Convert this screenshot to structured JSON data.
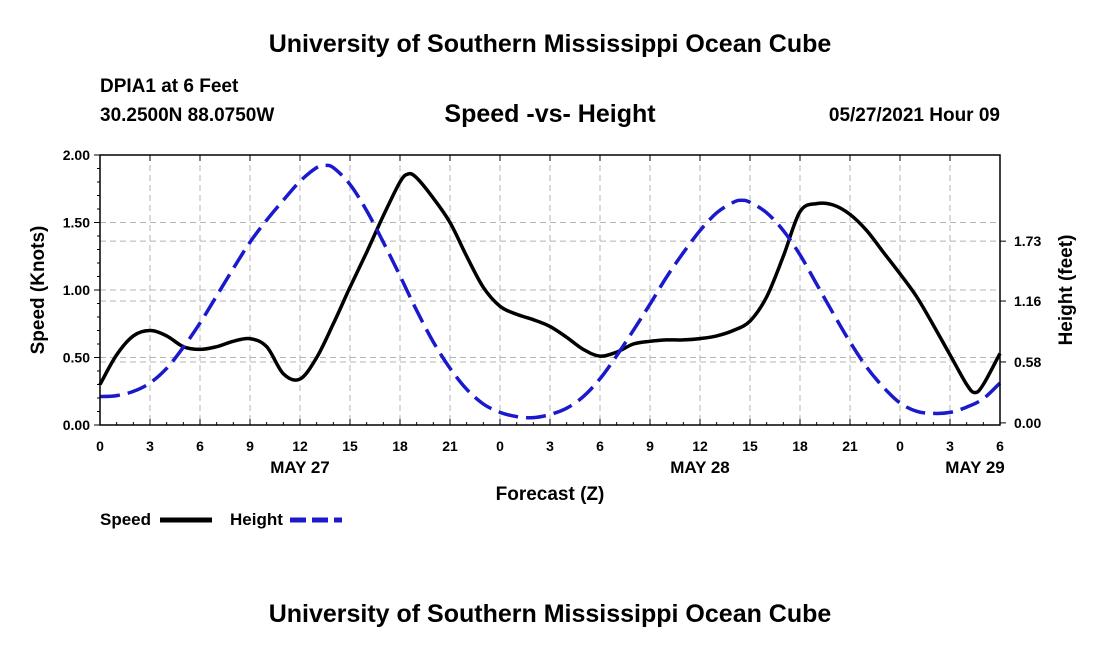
{
  "header": {
    "title": "University of Southern Mississippi Ocean Cube",
    "station": "DPIA1 at 6 Feet",
    "coords": "30.2500N  88.0750W",
    "forecast_time": "05/27/2021 Hour 09"
  },
  "footer": {
    "title": "University of Southern Mississippi Ocean Cube"
  },
  "colors": {
    "speed": "#000000",
    "height": "#1a1acc",
    "grid": "#b4b4b4"
  },
  "chart_data": {
    "type": "line",
    "title": "Speed -vs- Height",
    "xlabel": "Forecast (Z)",
    "ylabel": "Speed (Knots)",
    "ylabel_right": "Height (feet)",
    "x_range": [
      0,
      54
    ],
    "x_ticks": [
      0,
      3,
      6,
      9,
      12,
      15,
      18,
      21,
      24,
      27,
      30,
      33,
      36,
      39,
      42,
      45,
      48,
      51,
      54
    ],
    "x_tick_labels": [
      "0",
      "3",
      "6",
      "9",
      "12",
      "15",
      "18",
      "21",
      "0",
      "3",
      "6",
      "9",
      "12",
      "15",
      "18",
      "21",
      "0",
      "3",
      "6"
    ],
    "date_labels": [
      {
        "x": 12,
        "label": "MAY 27"
      },
      {
        "x": 36,
        "label": "MAY 28"
      },
      {
        "x": 52.5,
        "label": "MAY 29"
      }
    ],
    "ylim": [
      0,
      2
    ],
    "y_ticks": [
      0,
      0.5,
      1,
      1.5,
      2
    ],
    "y_tick_labels": [
      "0.00",
      "0.50",
      "1.00",
      "1.50",
      "2.00"
    ],
    "y2lim": [
      -0.02,
      2.55
    ],
    "y2_ticks": [
      0,
      0.58,
      1.16,
      1.73
    ],
    "y2_tick_labels": [
      "0.00",
      "0.58",
      "1.16",
      "1.73"
    ],
    "grid": true,
    "legend": {
      "position": "bottom-left",
      "entries": [
        "Speed",
        "Height"
      ]
    },
    "series": [
      {
        "name": "Speed",
        "axis": "left",
        "style": "solid",
        "x": [
          0,
          1,
          2,
          3,
          4,
          5,
          6,
          7,
          8,
          9,
          10,
          11,
          12,
          13,
          14,
          15,
          16,
          17,
          18,
          18.5,
          19,
          20,
          21,
          22,
          23,
          24,
          25,
          26,
          27,
          28,
          29,
          30,
          31,
          32,
          33,
          34,
          35,
          36,
          37,
          38,
          39,
          40,
          41,
          42,
          43,
          44,
          45,
          46,
          47,
          48,
          49,
          50,
          51,
          52,
          52.5,
          53,
          54
        ],
        "values": [
          0.3,
          0.52,
          0.66,
          0.7,
          0.66,
          0.58,
          0.56,
          0.58,
          0.62,
          0.64,
          0.58,
          0.38,
          0.34,
          0.5,
          0.75,
          1.02,
          1.28,
          1.55,
          1.8,
          1.86,
          1.83,
          1.68,
          1.5,
          1.25,
          1.02,
          0.88,
          0.82,
          0.78,
          0.73,
          0.65,
          0.56,
          0.51,
          0.54,
          0.6,
          0.62,
          0.63,
          0.63,
          0.64,
          0.66,
          0.7,
          0.77,
          0.95,
          1.25,
          1.58,
          1.64,
          1.63,
          1.56,
          1.44,
          1.28,
          1.12,
          0.95,
          0.74,
          0.52,
          0.3,
          0.24,
          0.3,
          0.53
        ]
      },
      {
        "name": "Height",
        "axis": "right",
        "style": "dashed",
        "x": [
          0,
          1,
          2,
          3,
          4,
          5,
          6,
          7,
          8,
          9,
          10,
          11,
          12,
          13,
          13.5,
          14,
          15,
          16,
          17,
          18,
          19,
          20,
          21,
          22,
          23,
          24,
          25,
          26,
          27,
          28,
          29,
          30,
          31,
          32,
          33,
          34,
          35,
          36,
          37,
          38,
          38.5,
          39,
          40,
          41,
          42,
          43,
          44,
          45,
          46,
          47,
          48,
          49,
          50,
          51,
          52,
          53,
          54
        ],
        "values": [
          0.25,
          0.26,
          0.3,
          0.38,
          0.52,
          0.72,
          0.95,
          1.21,
          1.47,
          1.72,
          1.93,
          2.12,
          2.3,
          2.43,
          2.45,
          2.43,
          2.27,
          2.02,
          1.72,
          1.4,
          1.07,
          0.77,
          0.52,
          0.32,
          0.18,
          0.1,
          0.06,
          0.05,
          0.08,
          0.14,
          0.25,
          0.42,
          0.64,
          0.88,
          1.13,
          1.39,
          1.62,
          1.83,
          2.0,
          2.1,
          2.12,
          2.1,
          2.0,
          1.83,
          1.6,
          1.32,
          1.04,
          0.77,
          0.53,
          0.34,
          0.19,
          0.11,
          0.09,
          0.1,
          0.15,
          0.23,
          0.38
        ]
      }
    ]
  }
}
